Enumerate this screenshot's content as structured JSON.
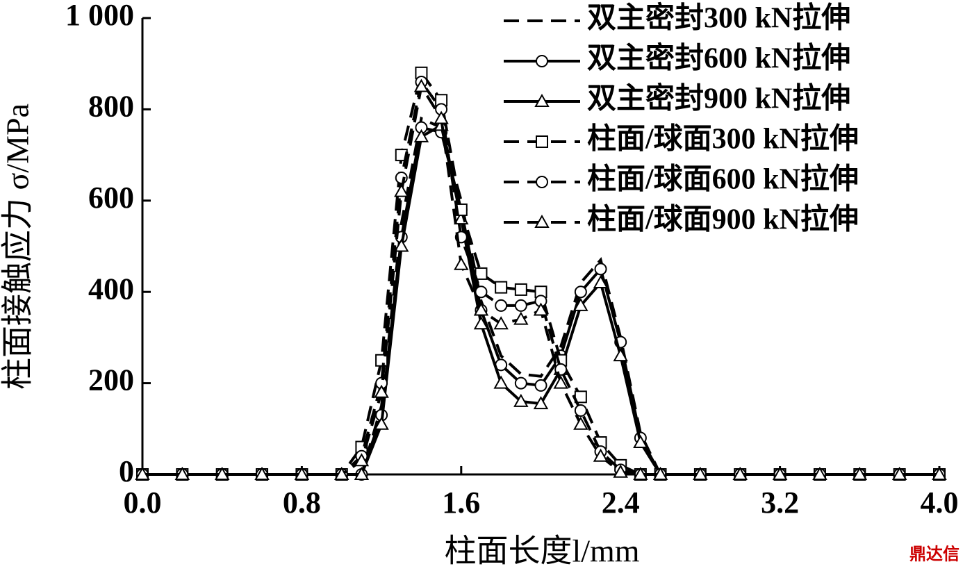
{
  "chart_data": {
    "type": "line",
    "y_label": "柱面接触应力 σ/MPa",
    "x_label": "柱面长度l/mm",
    "watermark": "鼎达信",
    "x": [
      0,
      0.2,
      0.4,
      0.6,
      0.8,
      1.0,
      1.1,
      1.2,
      1.3,
      1.4,
      1.5,
      1.6,
      1.7,
      1.8,
      1.9,
      2.0,
      2.1,
      2.2,
      2.3,
      2.4,
      2.5,
      2.6,
      2.8,
      3.0,
      3.2,
      3.4,
      3.6,
      3.8,
      4.0
    ],
    "xlim": [
      0,
      4.0
    ],
    "xticks": [
      {
        "value": 0,
        "label": "0.0"
      },
      {
        "value": 0.8,
        "label": "0.8"
      },
      {
        "value": 1.6,
        "label": "1.6"
      },
      {
        "value": 2.4,
        "label": "2.4"
      },
      {
        "value": 3.2,
        "label": "3.2"
      },
      {
        "value": 4.0,
        "label": "4.0"
      }
    ],
    "ylim": [
      0,
      1000
    ],
    "yticks": [
      0,
      200,
      400,
      600,
      800,
      {
        "value": 1000,
        "label": "1 000"
      }
    ],
    "series": [
      {
        "name": "双主密封300 kN拉伸",
        "color": "#000000",
        "dash": "dashed",
        "marker": "none",
        "values": [
          0,
          0,
          0,
          0,
          0,
          0,
          0,
          150,
          550,
          780,
          760,
          600,
          380,
          260,
          220,
          215,
          280,
          420,
          470,
          300,
          90,
          0,
          0,
          0,
          0,
          0,
          0,
          0,
          0
        ]
      },
      {
        "name": "双主密封600 kN拉伸",
        "color": "#000000",
        "dash": "solid",
        "marker": "circle",
        "values": [
          0,
          0,
          0,
          0,
          0,
          0,
          0,
          130,
          520,
          760,
          750,
          580,
          360,
          240,
          200,
          195,
          260,
          400,
          450,
          290,
          80,
          0,
          0,
          0,
          0,
          0,
          0,
          0,
          0
        ]
      },
      {
        "name": "双主密封900 kN拉伸",
        "color": "#000000",
        "dash": "solid",
        "marker": "triangle",
        "values": [
          0,
          0,
          0,
          0,
          0,
          0,
          0,
          110,
          500,
          740,
          765,
          560,
          330,
          200,
          160,
          155,
          230,
          370,
          420,
          260,
          70,
          0,
          0,
          0,
          0,
          0,
          0,
          0,
          0
        ]
      },
      {
        "name": "柱面/球面300 kN拉伸",
        "color": "#000000",
        "dash": "dashed",
        "marker": "square",
        "values": [
          0,
          0,
          0,
          0,
          0,
          0,
          60,
          250,
          700,
          880,
          820,
          580,
          440,
          410,
          405,
          400,
          250,
          170,
          70,
          20,
          0,
          0,
          0,
          0,
          0,
          0,
          0,
          0,
          0
        ]
      },
      {
        "name": "柱面/球面600 kN拉伸",
        "color": "#000000",
        "dash": "dashed",
        "marker": "circle",
        "values": [
          0,
          0,
          0,
          0,
          0,
          0,
          40,
          200,
          650,
          860,
          800,
          520,
          400,
          370,
          370,
          380,
          230,
          140,
          50,
          10,
          0,
          0,
          0,
          0,
          0,
          0,
          0,
          0,
          0
        ]
      },
      {
        "name": "柱面/球面900 kN拉伸",
        "color": "#000000",
        "dash": "dashed",
        "marker": "triangle",
        "values": [
          0,
          0,
          0,
          0,
          0,
          0,
          30,
          180,
          620,
          850,
          780,
          460,
          360,
          330,
          340,
          360,
          200,
          110,
          40,
          5,
          0,
          0,
          0,
          0,
          0,
          0,
          0,
          0,
          0
        ]
      }
    ]
  }
}
